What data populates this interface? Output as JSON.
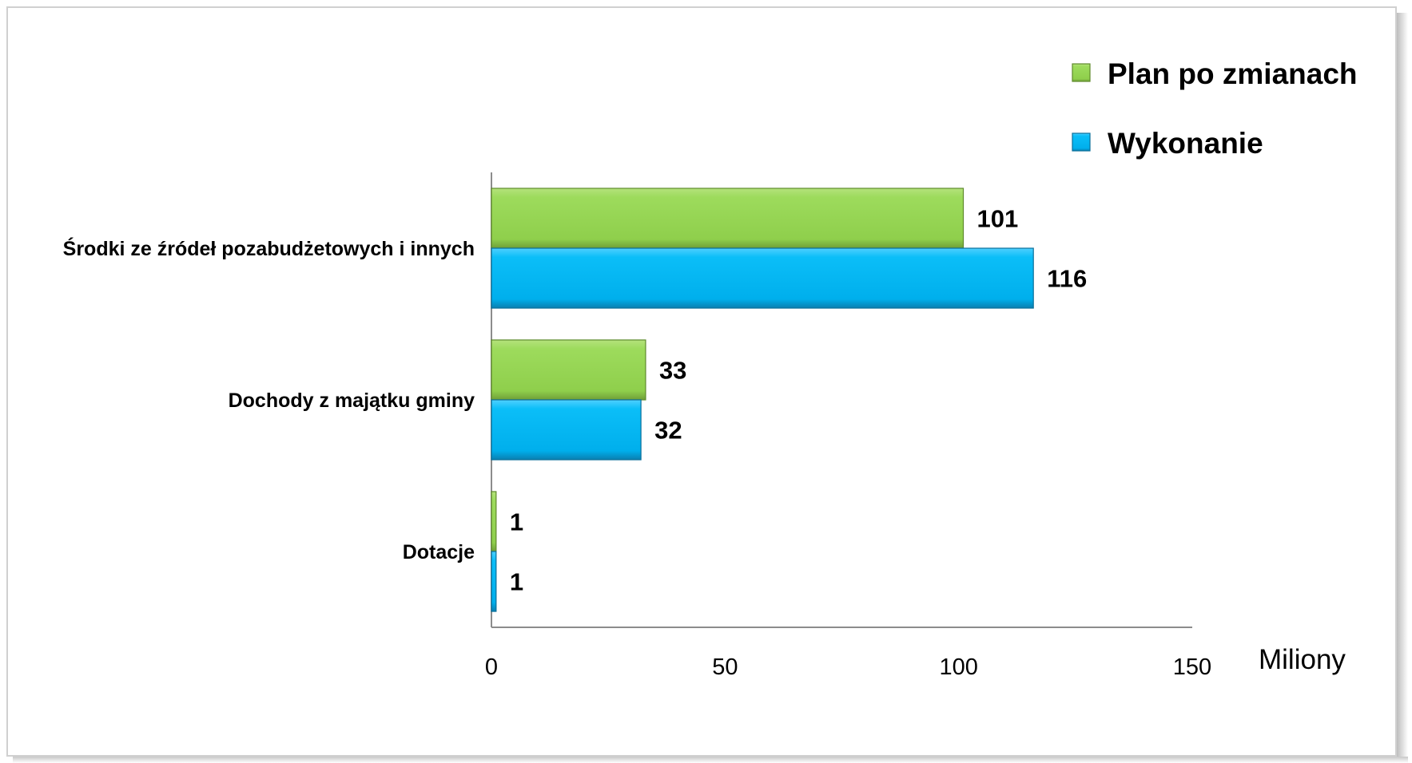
{
  "chart_data": {
    "type": "bar",
    "orientation": "horizontal",
    "categories": [
      "Środki ze źródeł pozabudżetowych i innych",
      "Dochody z majątku gminy",
      "Dotacje"
    ],
    "series": [
      {
        "name": "Plan po zmianach",
        "values": [
          101,
          33,
          1
        ],
        "color": "#92D050"
      },
      {
        "name": "Wykonanie",
        "values": [
          116,
          32,
          1
        ],
        "color": "#00B0F0"
      }
    ],
    "xlim": [
      0,
      150
    ],
    "xticks": [
      "0",
      "50",
      "100",
      "150"
    ],
    "xlabel": "Miliony",
    "grid": false,
    "legend_position": "top-right"
  }
}
